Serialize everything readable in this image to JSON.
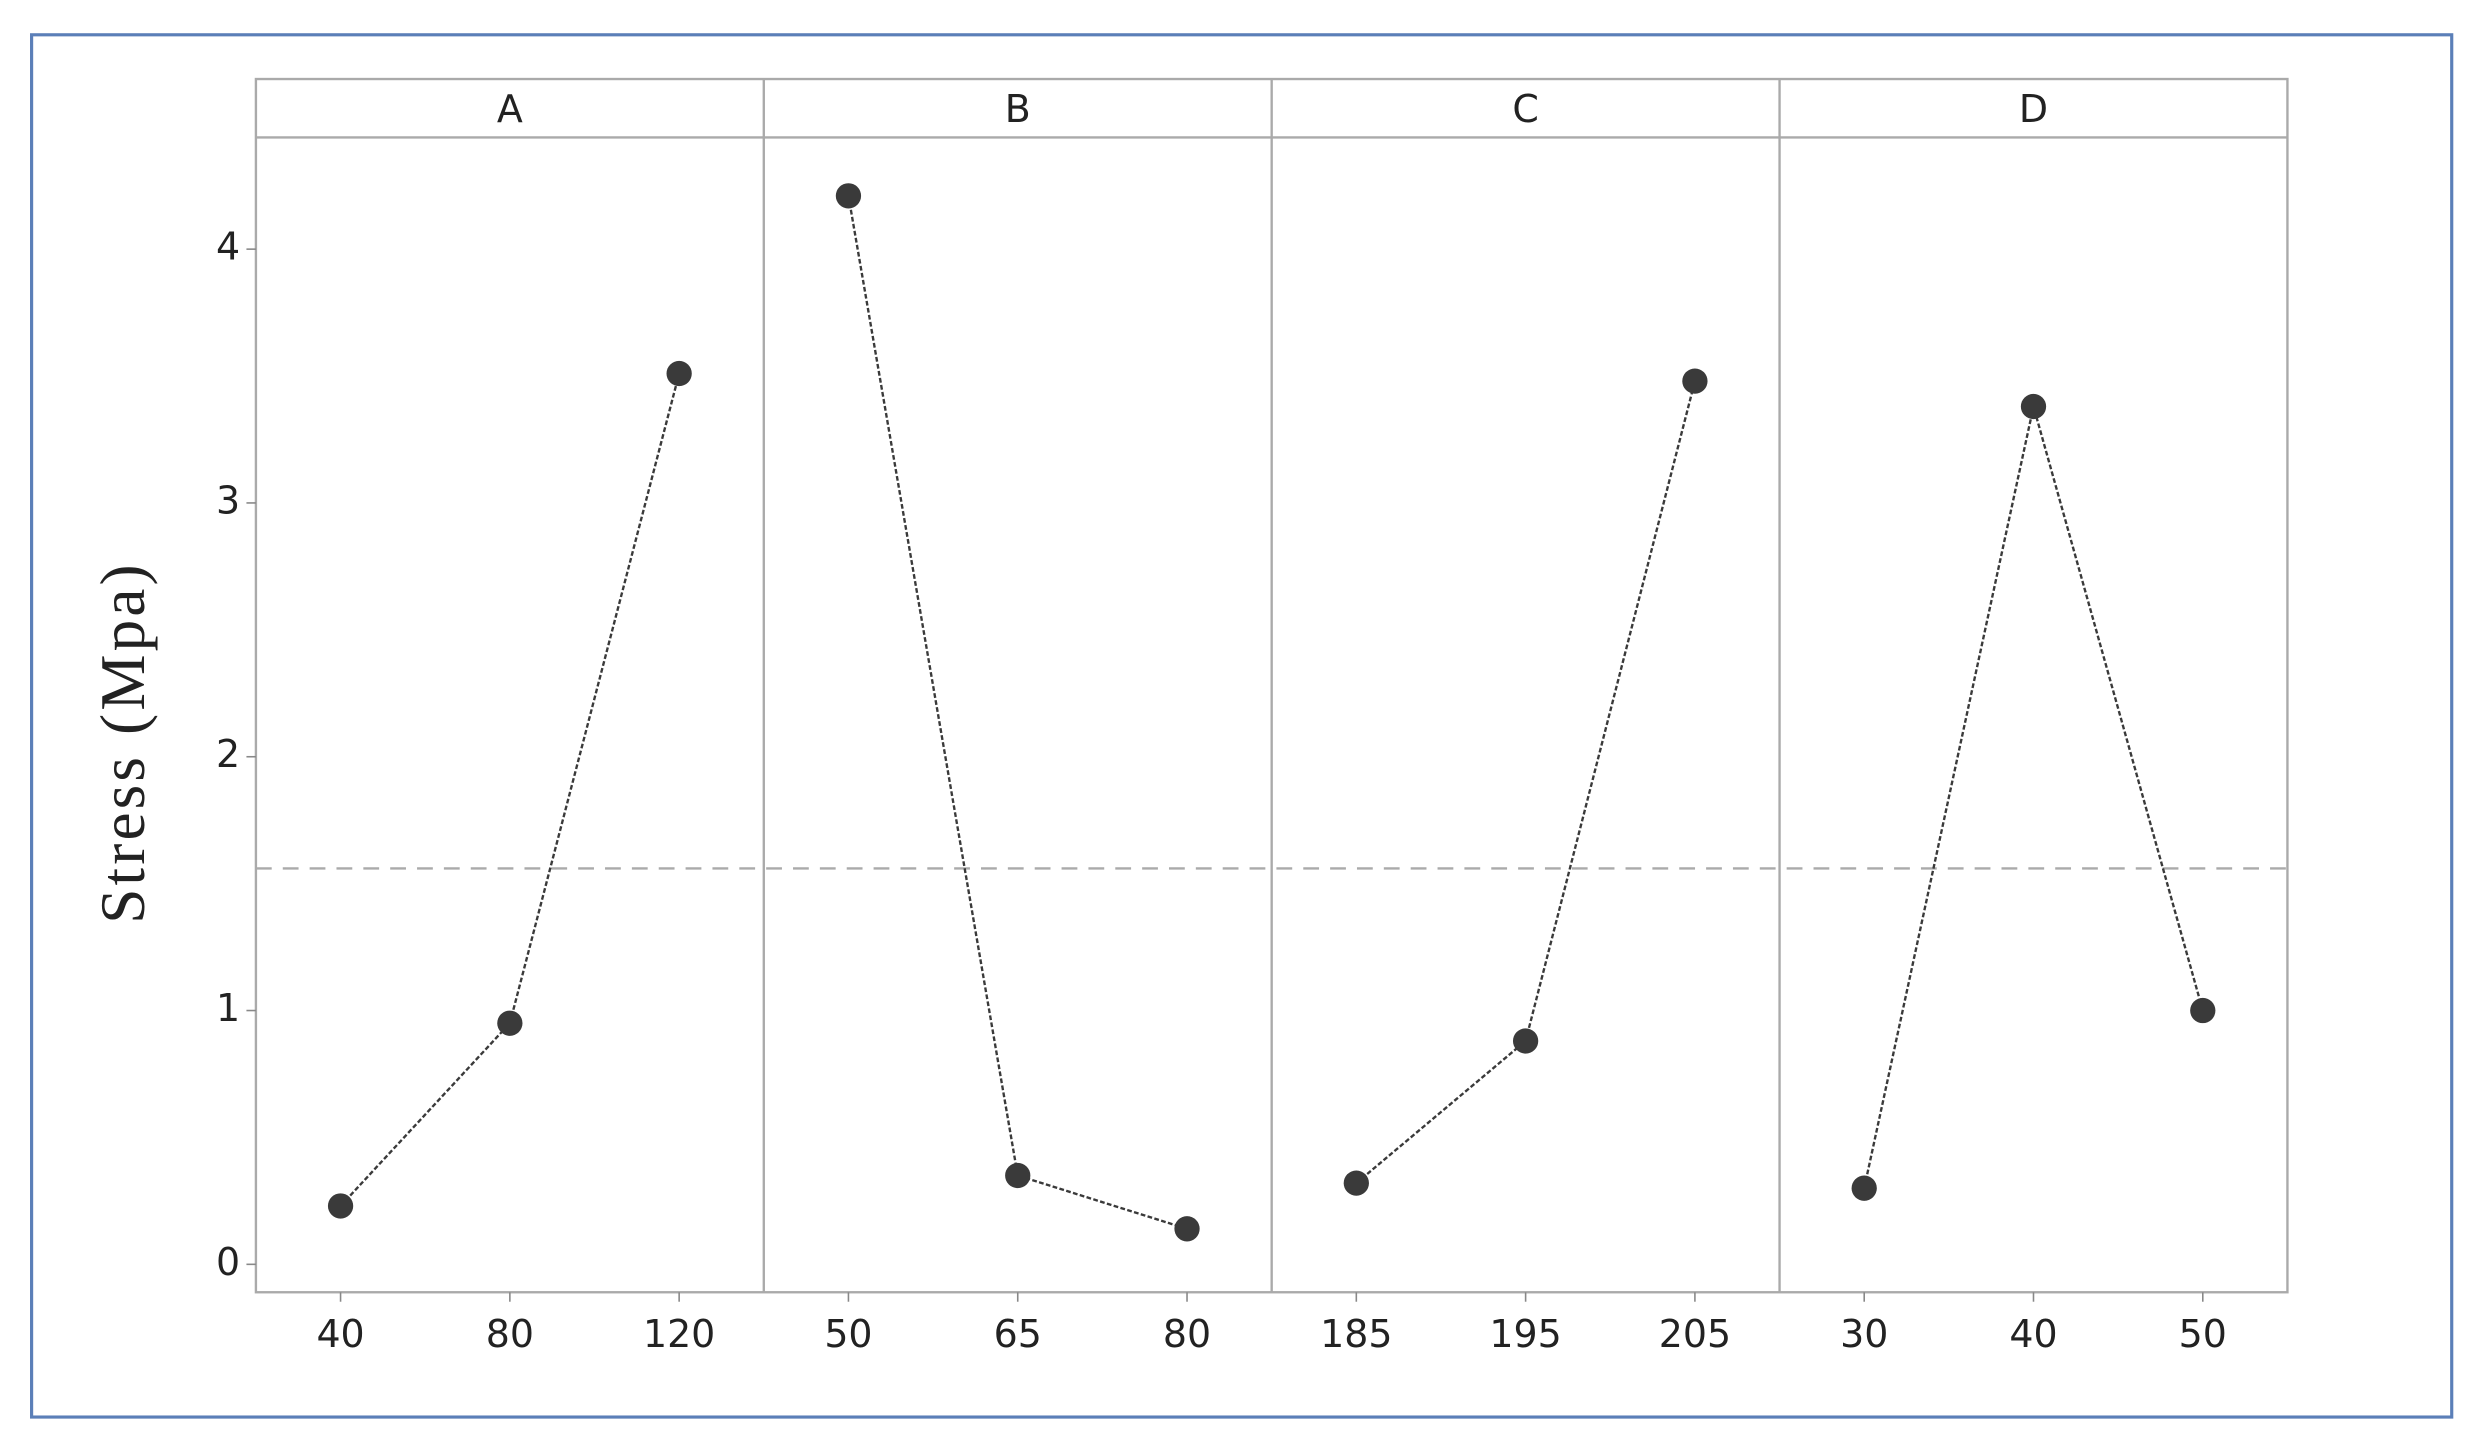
{
  "chart_data": {
    "type": "line",
    "ylabel": "Stress (Mpa)",
    "panels": [
      {
        "title": "A",
        "categories": [
          "40",
          "80",
          "120"
        ],
        "values": [
          0.23,
          0.95,
          3.51
        ]
      },
      {
        "title": "B",
        "categories": [
          "50",
          "65",
          "80"
        ],
        "values": [
          4.21,
          0.35,
          0.14
        ]
      },
      {
        "title": "C",
        "categories": [
          "185",
          "195",
          "205"
        ],
        "values": [
          0.32,
          0.88,
          3.48
        ]
      },
      {
        "title": "D",
        "categories": [
          "30",
          "40",
          "50"
        ],
        "values": [
          0.3,
          3.38,
          1.0
        ]
      }
    ],
    "color": "#3a3a3a",
    "reference_line": 1.56,
    "ylim": [
      -0.11,
      4.44
    ],
    "yticks": [
      0,
      1,
      2,
      3,
      4
    ]
  }
}
